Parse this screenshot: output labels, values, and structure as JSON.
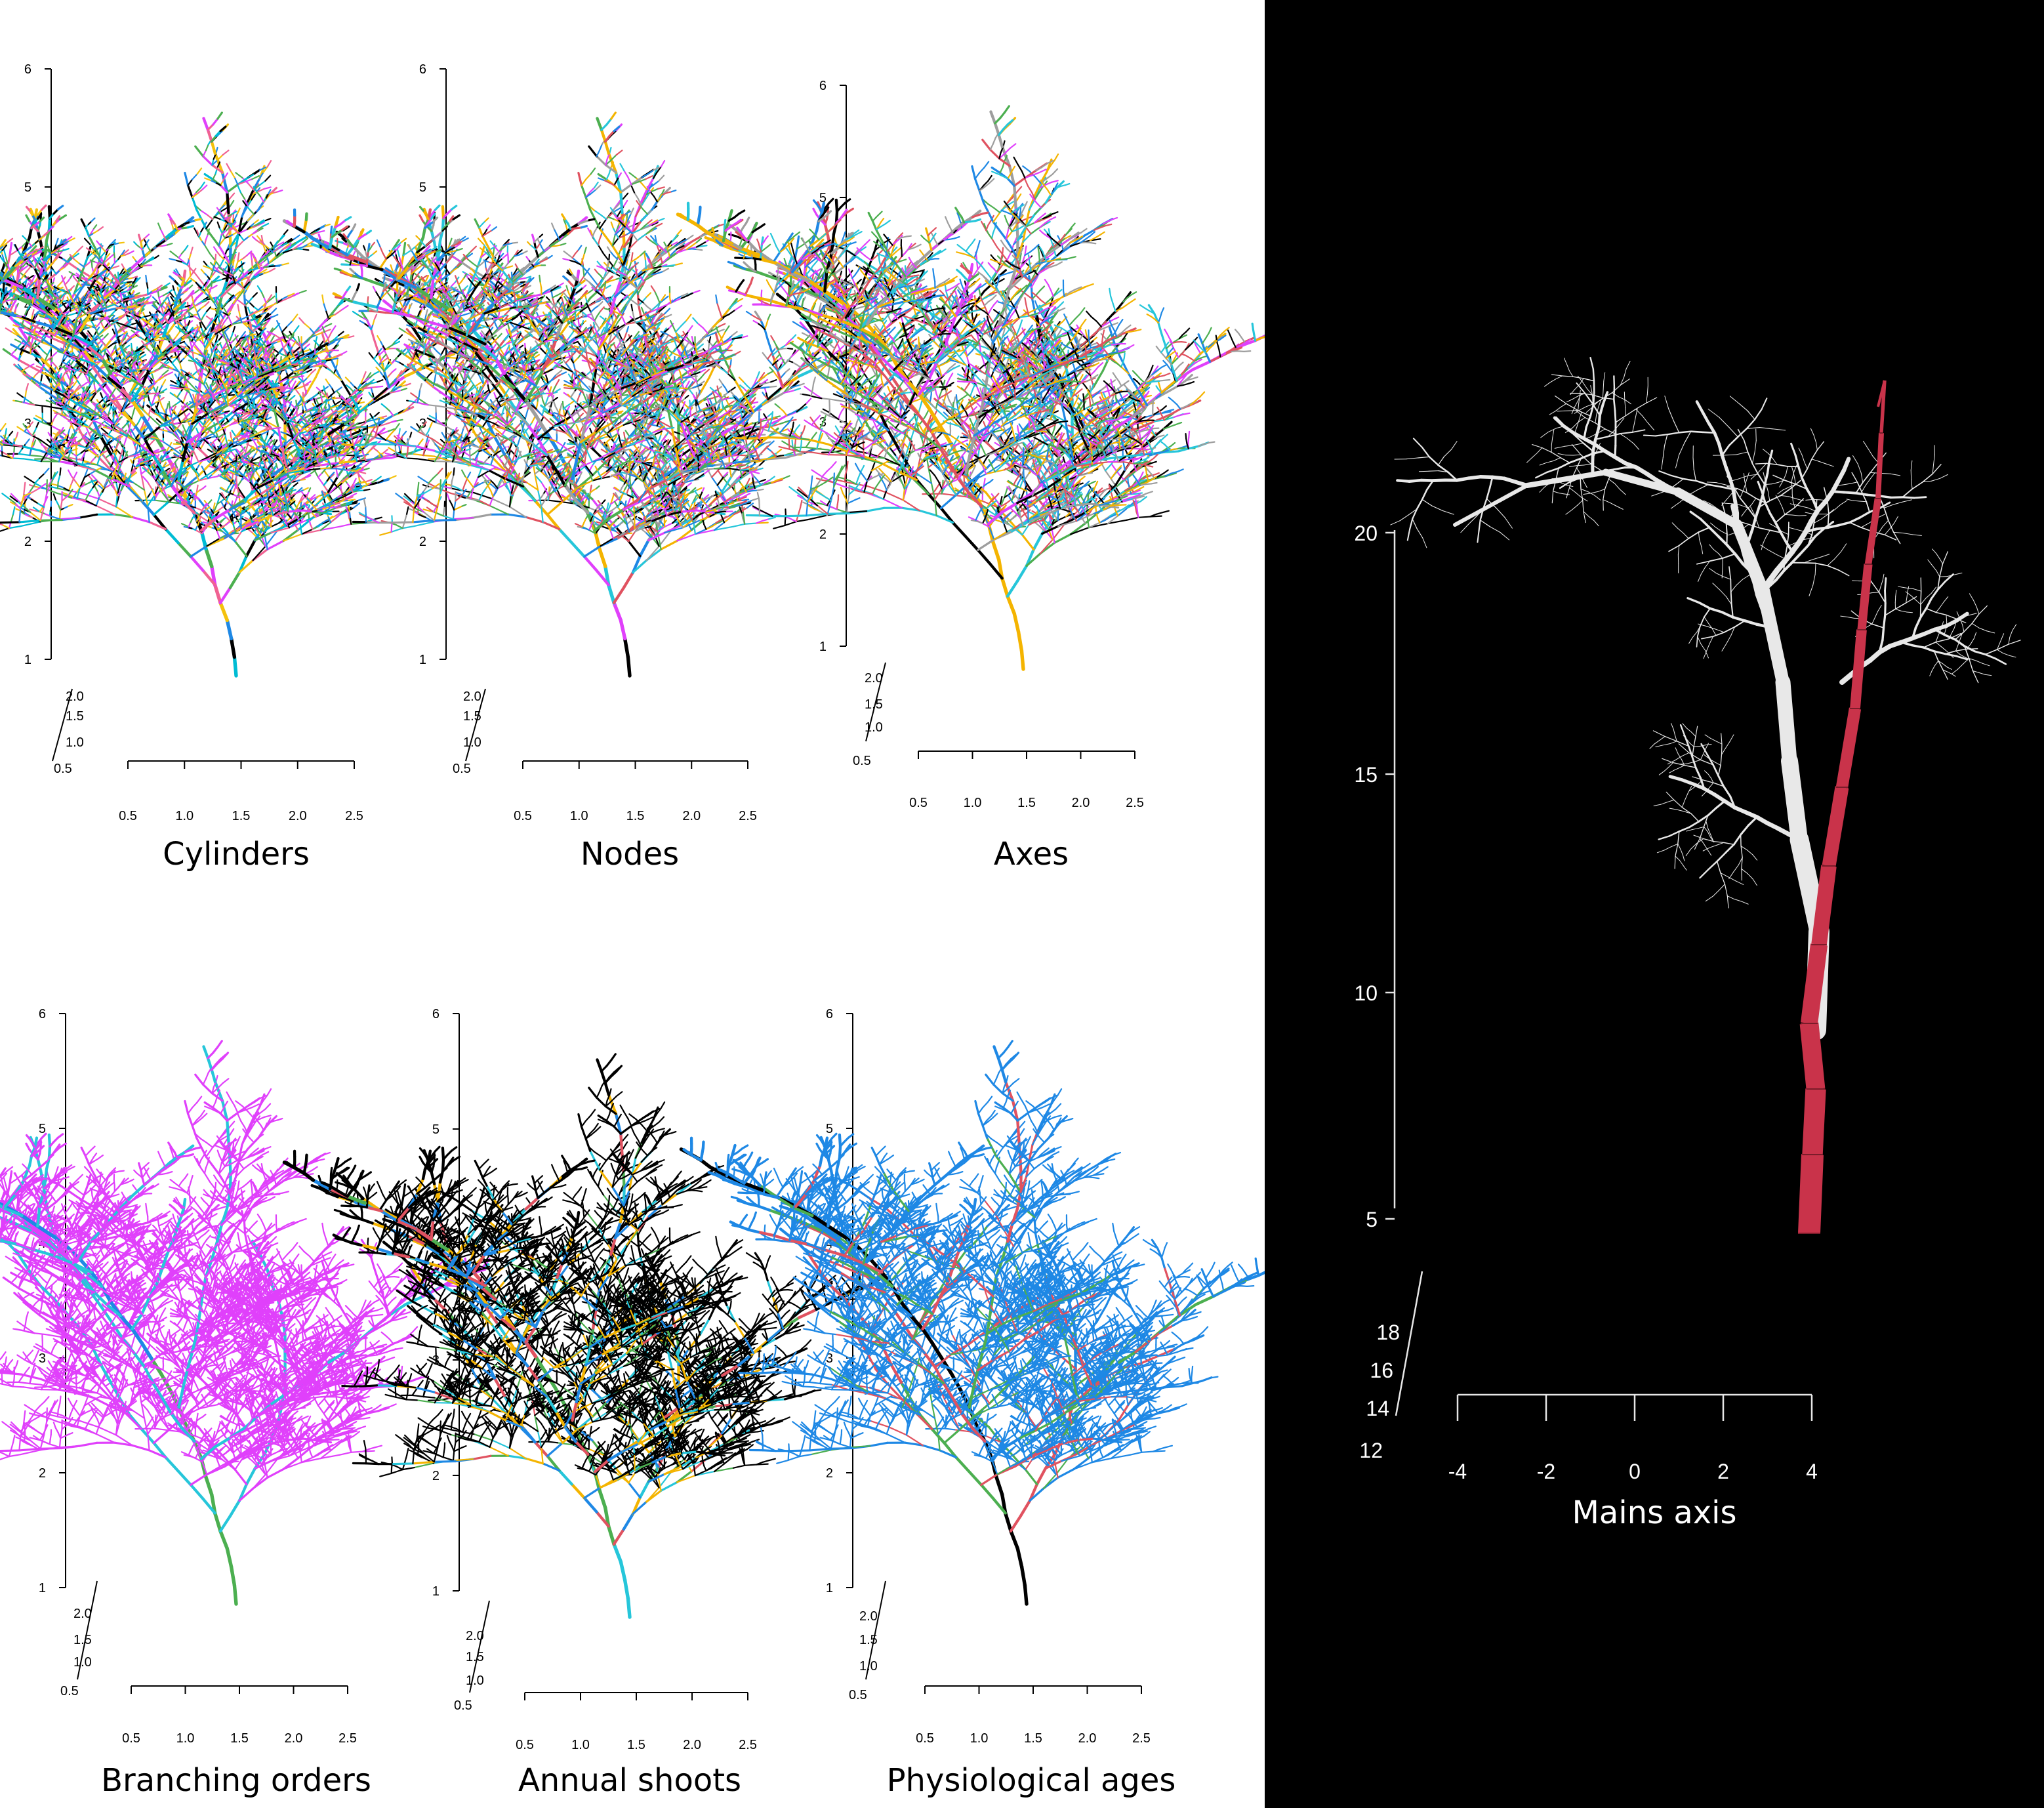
{
  "panels": [
    {
      "label": "Cylinders",
      "scheme": "segments",
      "z_ticks": [
        "1",
        "2",
        "3",
        "4",
        "5",
        "6"
      ],
      "y_ticks": [
        "0.5",
        "1.0",
        "1.5",
        "2.0"
      ],
      "x_ticks": [
        "0.5",
        "1.0",
        "1.5",
        "2.0",
        "2.5"
      ]
    },
    {
      "label": "Nodes",
      "scheme": "nodes",
      "z_ticks": [
        "1",
        "2",
        "3",
        "4",
        "5",
        "6"
      ],
      "y_ticks": [
        "0.5",
        "1.0",
        "1.5",
        "2.0"
      ],
      "x_ticks": [
        "0.5",
        "1.0",
        "1.5",
        "2.0",
        "2.5"
      ]
    },
    {
      "label": "Axes",
      "scheme": "axes",
      "z_ticks": [
        "1",
        "2",
        "3",
        "4",
        "5",
        "6"
      ],
      "y_ticks": [
        "0.5",
        "1.0",
        "1.5",
        "2.0"
      ],
      "x_ticks": [
        "0.5",
        "1.0",
        "1.5",
        "2.0",
        "2.5"
      ]
    },
    {
      "label": "Branching orders",
      "scheme": "orders",
      "z_ticks": [
        "1",
        "2",
        "3",
        "4",
        "5",
        "6"
      ],
      "y_ticks": [
        "0.5",
        "1.0",
        "1.5",
        "2.0"
      ],
      "x_ticks": [
        "0.5",
        "1.0",
        "1.5",
        "2.0",
        "2.5"
      ]
    },
    {
      "label": "Annual shoots",
      "scheme": "shoots",
      "z_ticks": [
        "1",
        "2",
        "3",
        "4",
        "5",
        "6"
      ],
      "y_ticks": [
        "0.5",
        "1.0",
        "1.5",
        "2.0"
      ],
      "x_ticks": [
        "0.5",
        "1.0",
        "1.5",
        "2.0",
        "2.5"
      ]
    },
    {
      "label": "Physiological ages",
      "scheme": "ages",
      "z_ticks": [
        "1",
        "2",
        "3",
        "4",
        "5",
        "6"
      ],
      "y_ticks": [
        "0.5",
        "1.0",
        "1.5",
        "2.0"
      ],
      "x_ticks": [
        "0.5",
        "1.0",
        "1.5",
        "2.0",
        "2.5"
      ]
    }
  ],
  "main_axis_panel": {
    "label": "Mains axis",
    "z_ticks": [
      "5",
      "10",
      "15",
      "20"
    ],
    "y_ticks": [
      "12",
      "14",
      "16",
      "18"
    ],
    "x_ticks": [
      "-4",
      "-2",
      "0",
      "2",
      "4"
    ],
    "background_color": "#000000",
    "highlight_color": "#c9334a",
    "tree_color": "#e8e8e8"
  },
  "palettes": {
    "segments": [
      "#00bcd4",
      "#e040fb",
      "#f4c20d",
      "#000000",
      "#4caf50",
      "#f06292",
      "#1e88e5"
    ],
    "nodes": [
      "#000000",
      "#e040fb",
      "#26c6da",
      "#f4b400",
      "#4caf50",
      "#e05260",
      "#1e88e5",
      "#9e9e9e"
    ],
    "axes": [
      "#e05260",
      "#4caf50",
      "#26c6da",
      "#f4b400",
      "#1e88e5",
      "#9e9e9e",
      "#000000",
      "#e040fb"
    ],
    "orders": [
      "#4caf50",
      "#1e88e5",
      "#26c6da",
      "#e040fb"
    ],
    "shoots": [
      "#26c6da",
      "#4caf50",
      "#e05260",
      "#1e88e5",
      "#f4b400",
      "#000000"
    ],
    "ages": [
      "#000000",
      "#e05260",
      "#4caf50",
      "#1e88e5"
    ]
  }
}
